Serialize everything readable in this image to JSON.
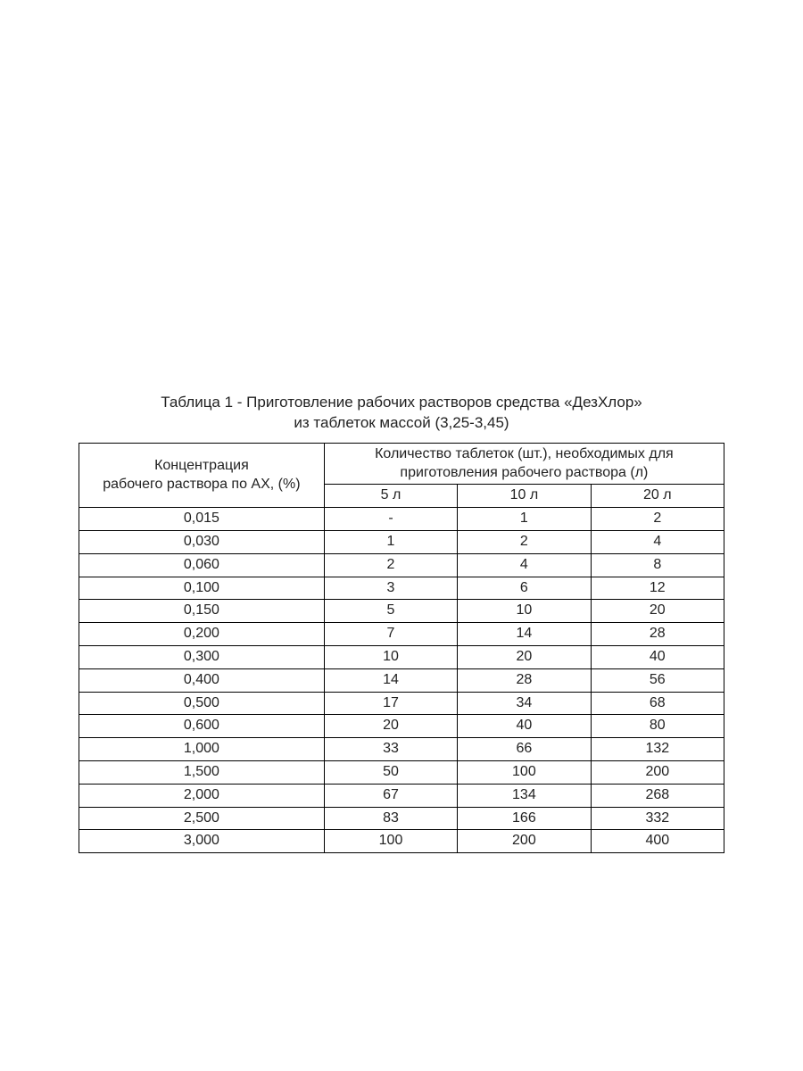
{
  "caption": {
    "line1": "Таблица 1 - Приготовление рабочих растворов средства «ДезХлор»",
    "line2": "из таблеток массой (3,25-3,45)"
  },
  "table": {
    "type": "table",
    "text_color": "#222222",
    "border_color": "#000000",
    "background_color": "#ffffff",
    "font_size_pt": 12,
    "header": {
      "concentration_label_line1": "Концентрация",
      "concentration_label_line2": "рабочего раствора по АХ, (%)",
      "quantity_label_line1": "Количество таблеток (шт.), необходимых для",
      "quantity_label_line2": "приготовления рабочего раствора (л)",
      "volumes": [
        "5 л",
        "10 л",
        "20 л"
      ]
    },
    "column_widths_pct": [
      38,
      20.66,
      20.66,
      20.66
    ],
    "rows": [
      {
        "conc": "0,015",
        "v5": "-",
        "v10": "1",
        "v20": "2"
      },
      {
        "conc": "0,030",
        "v5": "1",
        "v10": "2",
        "v20": "4"
      },
      {
        "conc": "0,060",
        "v5": "2",
        "v10": "4",
        "v20": "8"
      },
      {
        "conc": "0,100",
        "v5": "3",
        "v10": "6",
        "v20": "12"
      },
      {
        "conc": "0,150",
        "v5": "5",
        "v10": "10",
        "v20": "20"
      },
      {
        "conc": "0,200",
        "v5": "7",
        "v10": "14",
        "v20": "28"
      },
      {
        "conc": "0,300",
        "v5": "10",
        "v10": "20",
        "v20": "40"
      },
      {
        "conc": "0,400",
        "v5": "14",
        "v10": "28",
        "v20": "56"
      },
      {
        "conc": "0,500",
        "v5": "17",
        "v10": "34",
        "v20": "68"
      },
      {
        "conc": "0,600",
        "v5": "20",
        "v10": "40",
        "v20": "80"
      },
      {
        "conc": "1,000",
        "v5": "33",
        "v10": "66",
        "v20": "132"
      },
      {
        "conc": "1,500",
        "v5": "50",
        "v10": "100",
        "v20": "200"
      },
      {
        "conc": "2,000",
        "v5": "67",
        "v10": "134",
        "v20": "268"
      },
      {
        "conc": "2,500",
        "v5": "83",
        "v10": "166",
        "v20": "332"
      },
      {
        "conc": "3,000",
        "v5": "100",
        "v10": "200",
        "v20": "400"
      }
    ]
  }
}
